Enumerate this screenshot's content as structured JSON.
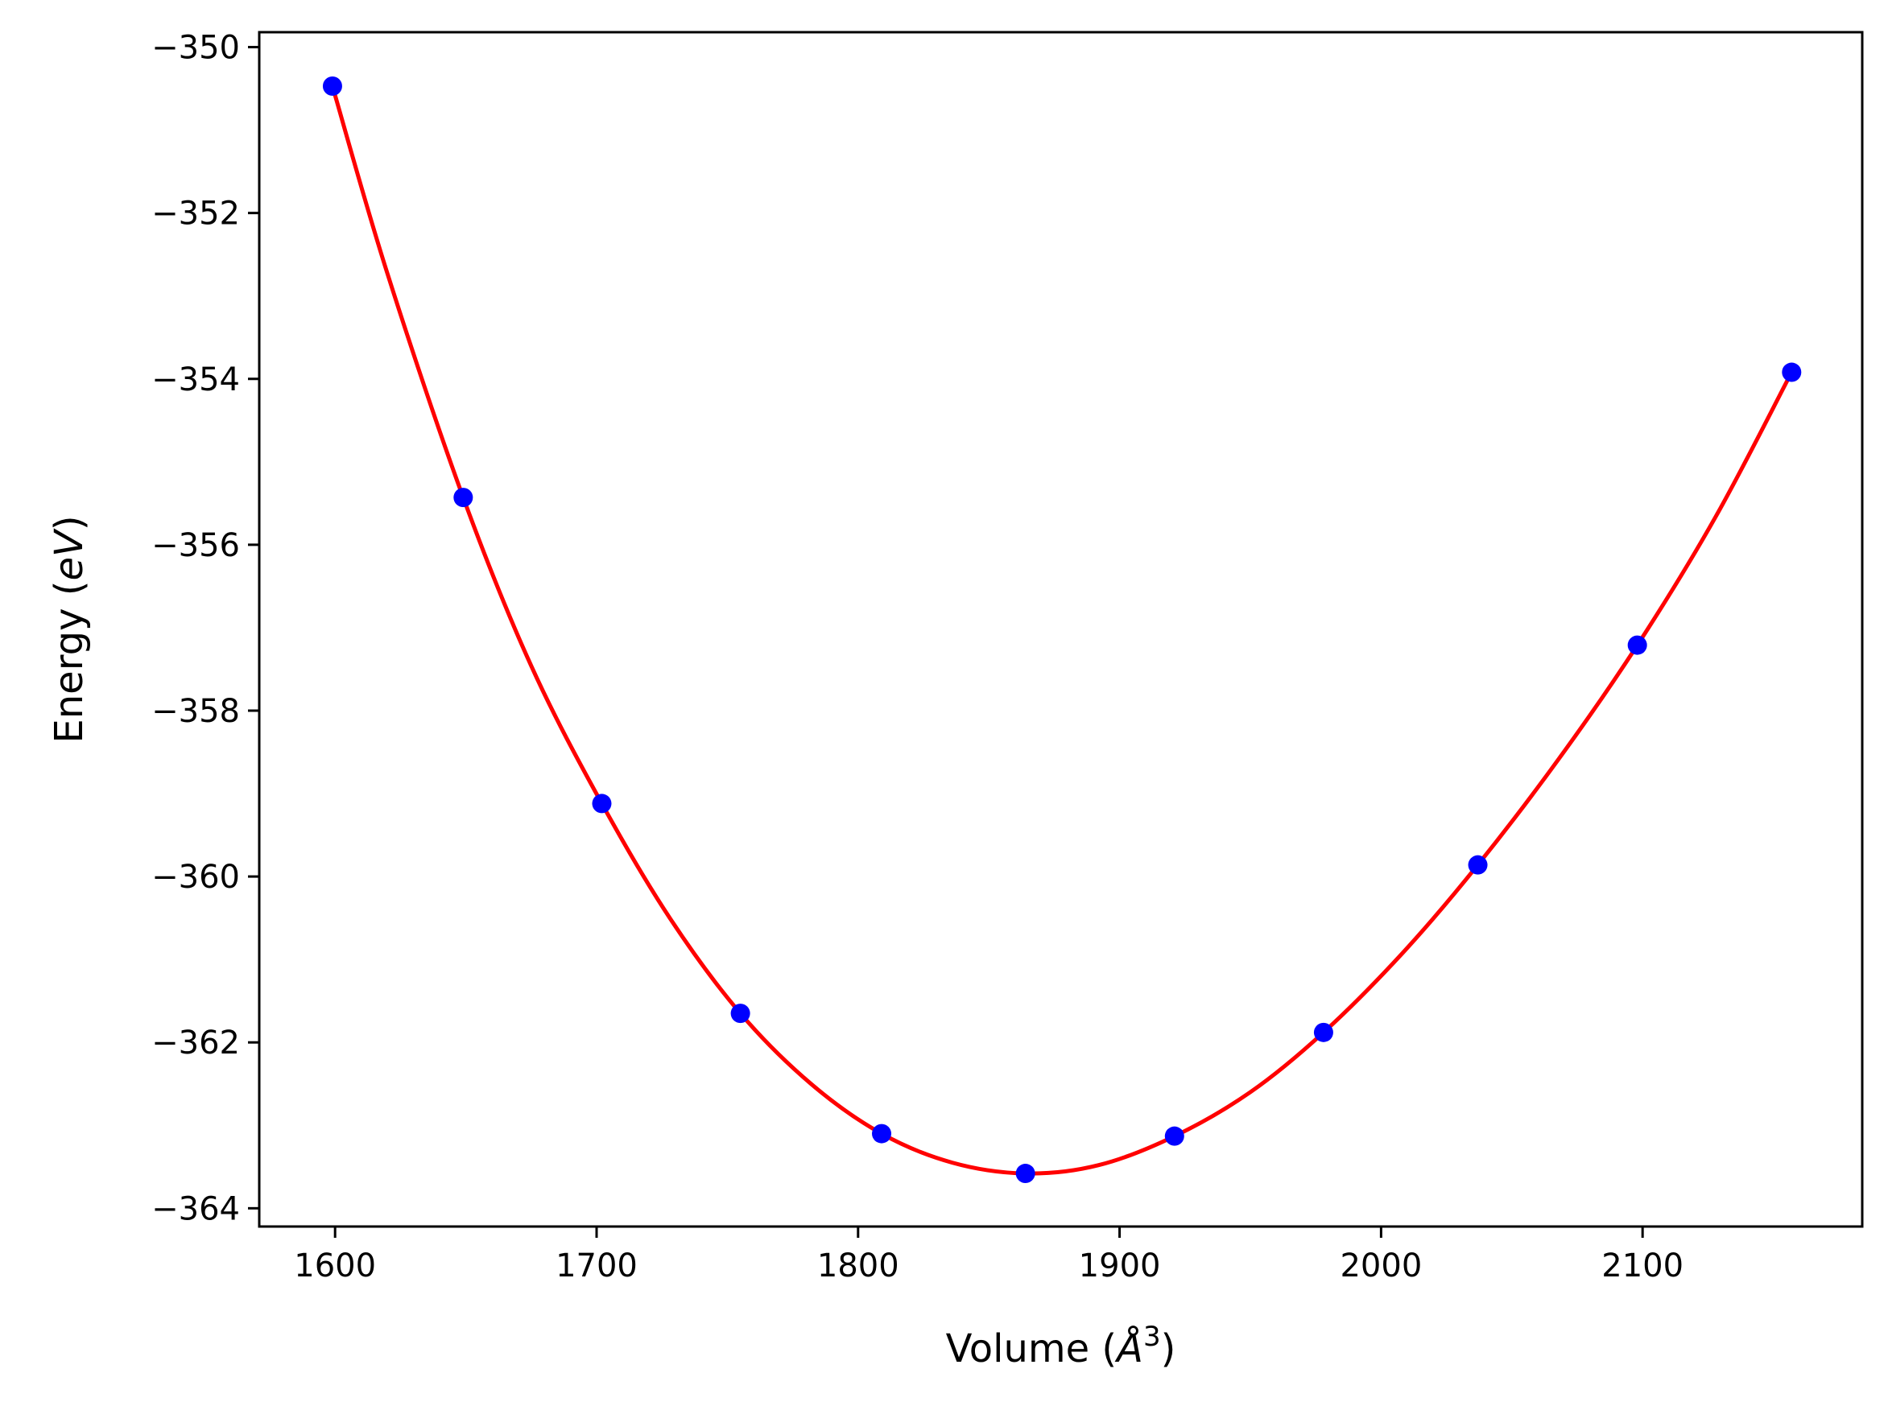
{
  "chart_data": {
    "type": "scatter",
    "xlabel": {
      "prefix": "Volume (",
      "unit": "Å",
      "power": "3",
      "suffix": ")"
    },
    "ylabel": {
      "prefix": "Energy (",
      "unit": "eV",
      "suffix": ")"
    },
    "xlim": [
      1571,
      2184
    ],
    "ylim": [
      -364.22,
      -349.82
    ],
    "xticks": [
      1600,
      1700,
      1800,
      1900,
      2000,
      2100
    ],
    "xtick_labels": [
      "1600",
      "1700",
      "1800",
      "1900",
      "2000",
      "2100"
    ],
    "yticks": [
      -364,
      -362,
      -360,
      -358,
      -356,
      -354,
      -352,
      -350
    ],
    "ytick_labels": [
      "−364",
      "−362",
      "−360",
      "−358",
      "−356",
      "−354",
      "−352",
      "−350"
    ],
    "grid": false,
    "colors": {
      "points": "#0000ff",
      "fit": "#ff0000",
      "axes": "#000000"
    },
    "series": [
      {
        "kind": "points",
        "x": [
          1599,
          1649,
          1702,
          1755,
          1809,
          1864,
          1921,
          1978,
          2037,
          2098,
          2157
        ],
        "y": [
          -350.47,
          -355.43,
          -359.12,
          -361.65,
          -363.1,
          -363.58,
          -363.13,
          -361.88,
          -359.86,
          -357.21,
          -353.92
        ]
      },
      {
        "kind": "fit-curve",
        "x": [
          1599,
          1620,
          1649,
          1675,
          1702,
          1728,
          1755,
          1782,
          1809,
          1836,
          1864,
          1892,
          1921,
          1950,
          1978,
          2008,
          2037,
          2068,
          2098,
          2128,
          2157
        ],
        "y": [
          -350.47,
          -352.73,
          -355.43,
          -357.46,
          -359.12,
          -360.5,
          -361.65,
          -362.5,
          -363.1,
          -363.45,
          -363.58,
          -363.48,
          -363.13,
          -362.6,
          -361.88,
          -360.93,
          -359.86,
          -358.58,
          -357.21,
          -355.66,
          -353.92
        ]
      }
    ]
  }
}
